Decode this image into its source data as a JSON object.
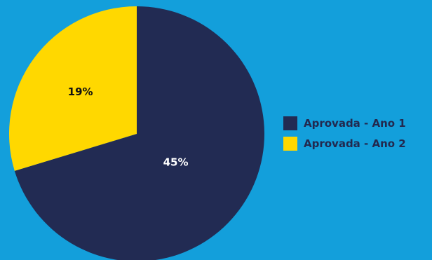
{
  "chart_data": {
    "type": "pie",
    "title": "",
    "categories": [
      "Aprovada - Ano 1",
      "Aprovada - Ano 2"
    ],
    "values": [
      45,
      19
    ],
    "labels": [
      "45%",
      "19%"
    ],
    "colors": [
      "#222b53",
      "#ffd800"
    ],
    "legend_position": "right",
    "start_angle_deg": 0,
    "direction": "clockwise"
  }
}
